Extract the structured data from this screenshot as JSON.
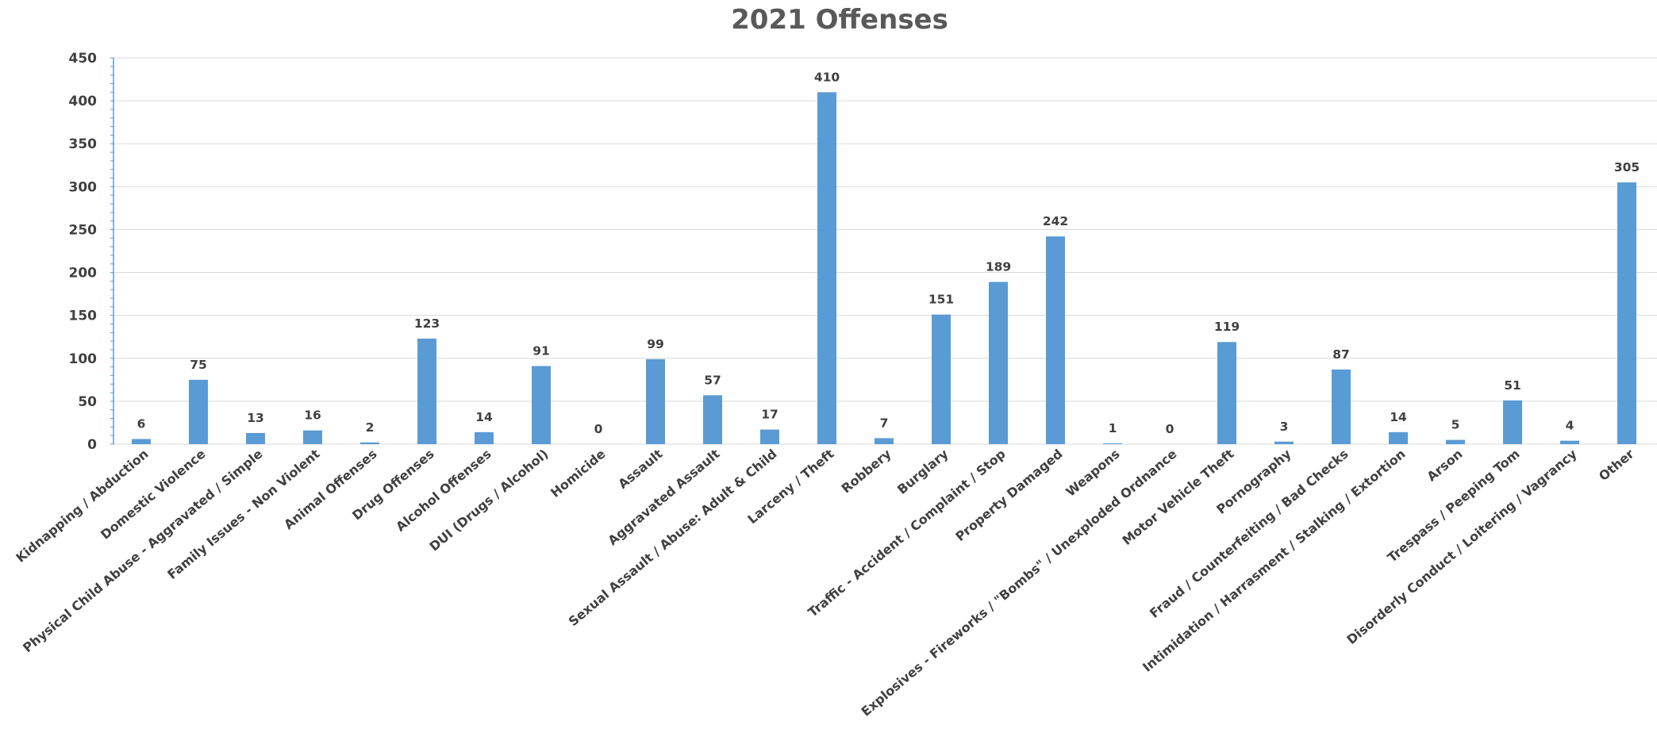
{
  "chart_data": {
    "type": "bar",
    "title": "2021 Offenses",
    "xlabel": "",
    "ylabel": "",
    "ylim": [
      0,
      450
    ],
    "yticks": [
      0,
      50,
      100,
      150,
      200,
      250,
      300,
      350,
      400,
      450
    ],
    "grid": true,
    "legend": "none",
    "bar_color": "#5b9bd5",
    "categories": [
      "Kidnapping / Abduction",
      "Domestic Violence",
      "Physical Child Abuse - Aggravated / Simple",
      "Family Issues - Non Violent",
      "Animal Offenses",
      "Drug Offenses",
      "Alcohol Offenses",
      "DUI (Drugs / Alcohol)",
      "Homicide",
      "Assault",
      "Aggravated Assault",
      "Sexual Assault / Abuse: Adult & Child",
      "Larceny / Theft",
      "Robbery",
      "Burglary",
      "Traffic - Accident / Complaint / Stop",
      "Property Damaged",
      "Weapons",
      "Explosives - Fireworks / \"Bombs\" / Unexploded Ordnance",
      "Motor Vehicle Theft",
      "Pornography",
      "Fraud / Counterfeiting / Bad Checks",
      "Intimidation / Harrasment / Stalking / Extortion",
      "Arson",
      "Trespass / Peeping Tom",
      "Disorderly Conduct / Loitering / Vagrancy",
      "Other"
    ],
    "values": [
      6,
      75,
      13,
      16,
      2,
      123,
      14,
      91,
      0,
      99,
      57,
      17,
      410,
      7,
      151,
      189,
      242,
      1,
      0,
      119,
      3,
      87,
      14,
      5,
      51,
      4,
      305
    ]
  }
}
